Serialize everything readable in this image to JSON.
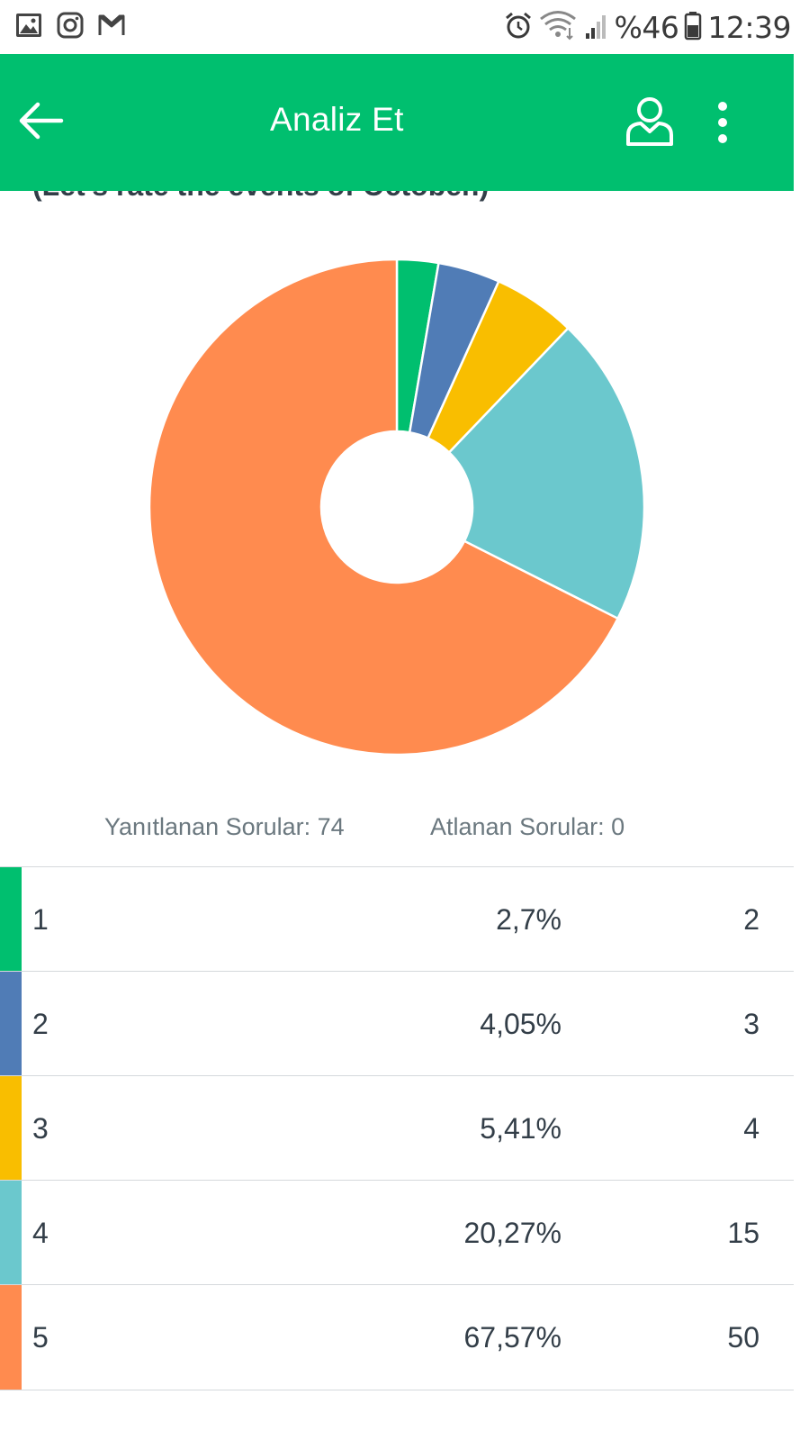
{
  "status_bar": {
    "battery": "%46",
    "time": "12:39",
    "left_icons": [
      "gallery-icon",
      "instagram-icon",
      "gmail-icon"
    ],
    "right_icons": [
      "alarm-icon",
      "wifi-icon",
      "signal-icon",
      "battery-icon"
    ]
  },
  "app_bar": {
    "title": "Analiz Et",
    "background": "#00bf6f"
  },
  "question": {
    "text": "(Let's rate the events of October.)"
  },
  "chart_data": {
    "type": "pie",
    "style": "donut",
    "categories": [
      "1",
      "2",
      "3",
      "4",
      "5"
    ],
    "values": [
      2,
      3,
      4,
      15,
      50
    ],
    "colors": [
      "#00bf6f",
      "#507cb6",
      "#f9be00",
      "#6bc8cd",
      "#ff8b4f"
    ]
  },
  "summary": {
    "answered": "Yanıtlanan Sorular: 74",
    "skipped": "Atlanan Sorular: 0"
  },
  "answers": [
    {
      "label": "1",
      "percent": "2,7%",
      "count": "2",
      "color": "#00bf6f"
    },
    {
      "label": "2",
      "percent": "4,05%",
      "count": "3",
      "color": "#507cb6"
    },
    {
      "label": "3",
      "percent": "5,41%",
      "count": "4",
      "color": "#f9be00"
    },
    {
      "label": "4",
      "percent": "20,27%",
      "count": "15",
      "color": "#6bc8cd"
    },
    {
      "label": "5",
      "percent": "67,57%",
      "count": "50",
      "color": "#ff8b4f"
    }
  ]
}
